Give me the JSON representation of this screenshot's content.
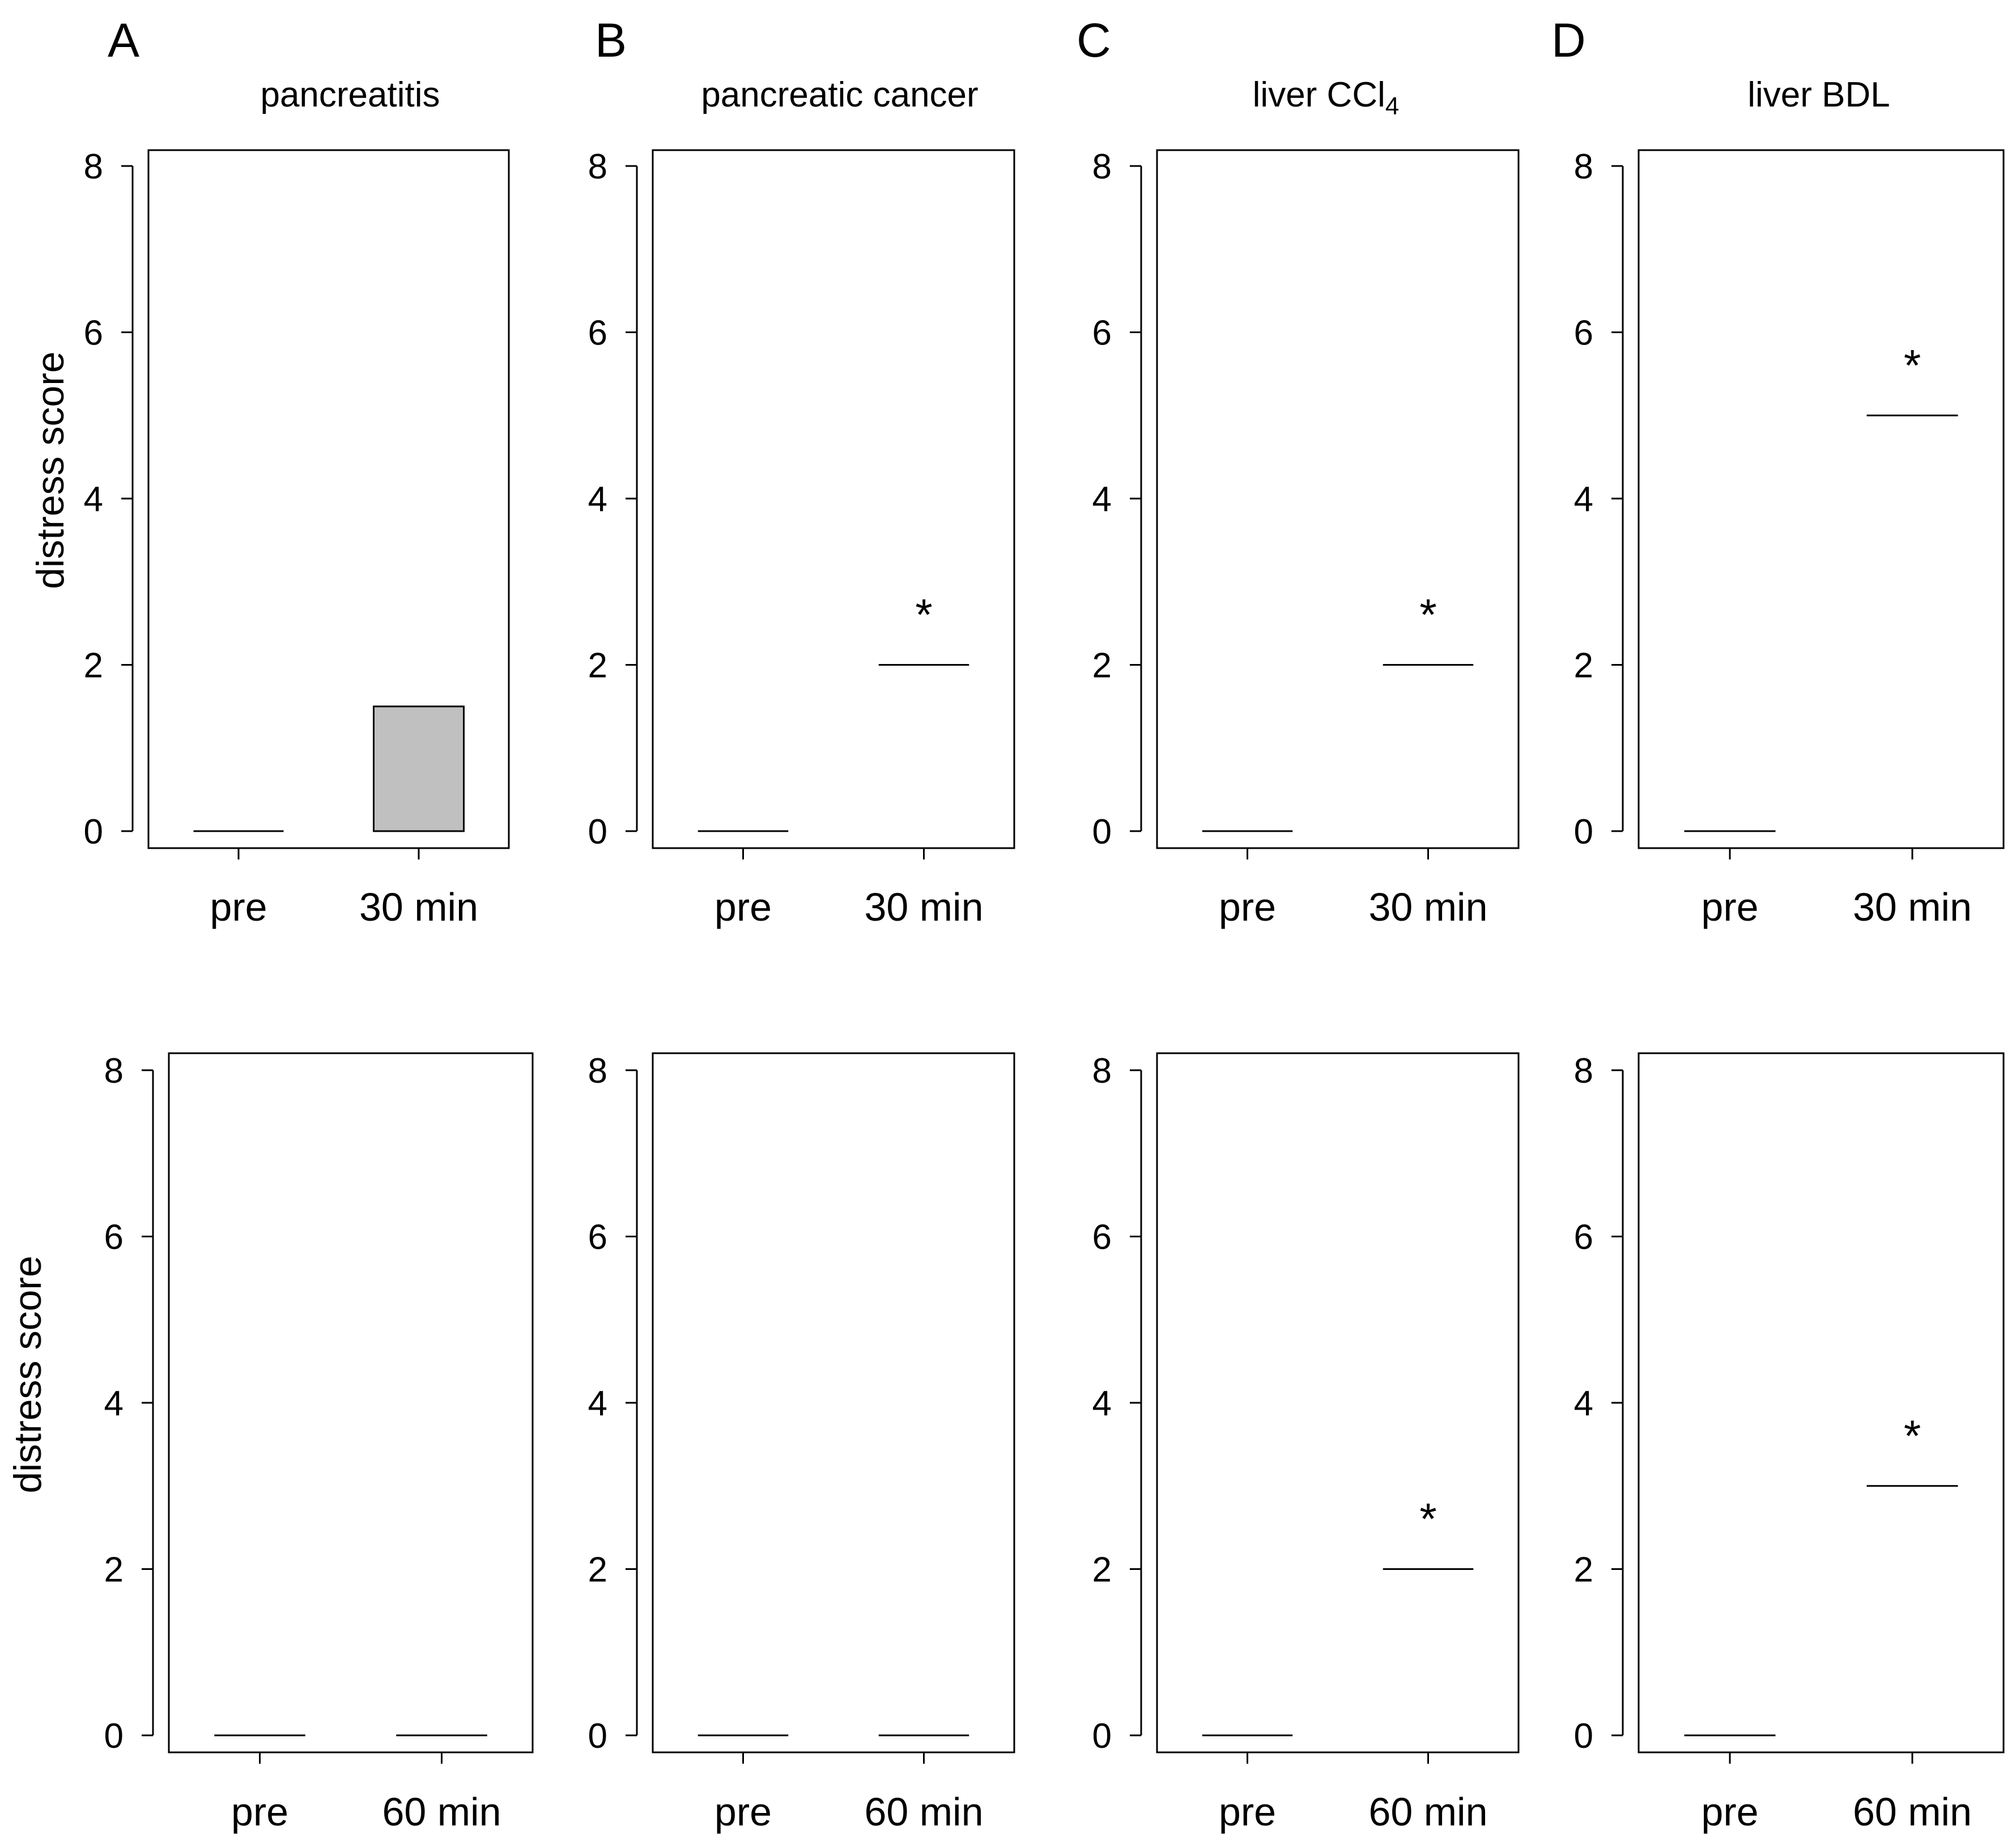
{
  "figure": {
    "ylabel": "distress score",
    "ylim": [
      0,
      8
    ],
    "yticks": [
      "0",
      "2",
      "4",
      "6",
      "8"
    ],
    "colors": {
      "axis": "#000000",
      "box_fill": "#c0c0c0",
      "background": "#ffffff"
    }
  },
  "panels": [
    {
      "letter": "A",
      "title_main": "pancreatitis",
      "title_sub": "",
      "title_suffix": "",
      "charts": [
        {
          "categories": [
            "pre",
            "30 min"
          ],
          "show_ylabel": true,
          "groups": [
            {
              "kind": "line",
              "value": 0
            },
            {
              "kind": "box",
              "low": 0,
              "high": 1.5
            }
          ],
          "significance": [
            {
              "group": 1,
              "label": "",
              "value": 1.5
            }
          ]
        },
        {
          "categories": [
            "pre",
            "60 min"
          ],
          "show_ylabel": true,
          "groups": [
            {
              "kind": "line",
              "value": 0
            },
            {
              "kind": "line",
              "value": 0
            }
          ],
          "significance": []
        }
      ]
    },
    {
      "letter": "B",
      "title_main": "pancreatic cancer",
      "title_sub": "",
      "title_suffix": "",
      "charts": [
        {
          "categories": [
            "pre",
            "30 min"
          ],
          "show_ylabel": false,
          "groups": [
            {
              "kind": "line",
              "value": 0
            },
            {
              "kind": "line",
              "value": 2
            }
          ],
          "significance": [
            {
              "group": 1,
              "label": "*",
              "value": 2
            }
          ]
        },
        {
          "categories": [
            "pre",
            "60 min"
          ],
          "show_ylabel": false,
          "groups": [
            {
              "kind": "line",
              "value": 0
            },
            {
              "kind": "line",
              "value": 0
            }
          ],
          "significance": []
        }
      ]
    },
    {
      "letter": "C",
      "title_main": "liver CCl",
      "title_sub": "4",
      "title_suffix": "",
      "charts": [
        {
          "categories": [
            "pre",
            "30 min"
          ],
          "show_ylabel": false,
          "groups": [
            {
              "kind": "line",
              "value": 0
            },
            {
              "kind": "line",
              "value": 2
            }
          ],
          "significance": [
            {
              "group": 1,
              "label": "*",
              "value": 2
            }
          ]
        },
        {
          "categories": [
            "pre",
            "60 min"
          ],
          "show_ylabel": false,
          "groups": [
            {
              "kind": "line",
              "value": 0
            },
            {
              "kind": "line",
              "value": 2
            }
          ],
          "significance": [
            {
              "group": 1,
              "label": "*",
              "value": 2
            }
          ]
        }
      ]
    },
    {
      "letter": "D",
      "title_main": "liver BDL",
      "title_sub": "",
      "title_suffix": "",
      "charts": [
        {
          "categories": [
            "pre",
            "30 min"
          ],
          "show_ylabel": false,
          "groups": [
            {
              "kind": "line",
              "value": 0
            },
            {
              "kind": "line",
              "value": 5
            }
          ],
          "significance": [
            {
              "group": 1,
              "label": "*",
              "value": 5
            }
          ]
        },
        {
          "categories": [
            "pre",
            "60 min"
          ],
          "show_ylabel": false,
          "groups": [
            {
              "kind": "line",
              "value": 0
            },
            {
              "kind": "line",
              "value": 3
            }
          ],
          "significance": [
            {
              "group": 1,
              "label": "*",
              "value": 3
            }
          ]
        }
      ]
    }
  ],
  "chart_data": [
    {
      "type": "box",
      "panel": "A",
      "title": "pancreatitis",
      "xlabel": "",
      "ylabel": "distress score",
      "ylim": [
        0,
        8
      ],
      "categories": [
        "pre",
        "30 min"
      ],
      "values": [
        0,
        0.75
      ],
      "box": {
        "30 min": [
          0,
          1.5
        ]
      }
    },
    {
      "type": "box",
      "panel": "B",
      "title": "pancreatic cancer",
      "ylabel": "",
      "ylim": [
        0,
        8
      ],
      "categories": [
        "pre",
        "30 min"
      ],
      "values": [
        0,
        2
      ],
      "significant": [
        "30 min"
      ]
    },
    {
      "type": "box",
      "panel": "C",
      "title": "liver CCl4",
      "ylabel": "",
      "ylim": [
        0,
        8
      ],
      "categories": [
        "pre",
        "30 min"
      ],
      "values": [
        0,
        2
      ],
      "significant": [
        "30 min"
      ]
    },
    {
      "type": "box",
      "panel": "D",
      "title": "liver BDL",
      "ylabel": "",
      "ylim": [
        0,
        8
      ],
      "categories": [
        "pre",
        "30 min"
      ],
      "values": [
        0,
        5
      ],
      "significant": [
        "30 min"
      ]
    },
    {
      "type": "box",
      "panel": "A",
      "title": "",
      "ylabel": "distress score",
      "ylim": [
        0,
        8
      ],
      "categories": [
        "pre",
        "60 min"
      ],
      "values": [
        0,
        0
      ]
    },
    {
      "type": "box",
      "panel": "B",
      "title": "",
      "ylabel": "",
      "ylim": [
        0,
        8
      ],
      "categories": [
        "pre",
        "60 min"
      ],
      "values": [
        0,
        0
      ]
    },
    {
      "type": "box",
      "panel": "C",
      "title": "",
      "ylabel": "",
      "ylim": [
        0,
        8
      ],
      "categories": [
        "pre",
        "60 min"
      ],
      "values": [
        0,
        2
      ],
      "significant": [
        "60 min"
      ]
    },
    {
      "type": "box",
      "panel": "D",
      "title": "",
      "ylabel": "",
      "ylim": [
        0,
        8
      ],
      "categories": [
        "pre",
        "60 min"
      ],
      "values": [
        0,
        3
      ],
      "significant": [
        "60 min"
      ]
    }
  ]
}
